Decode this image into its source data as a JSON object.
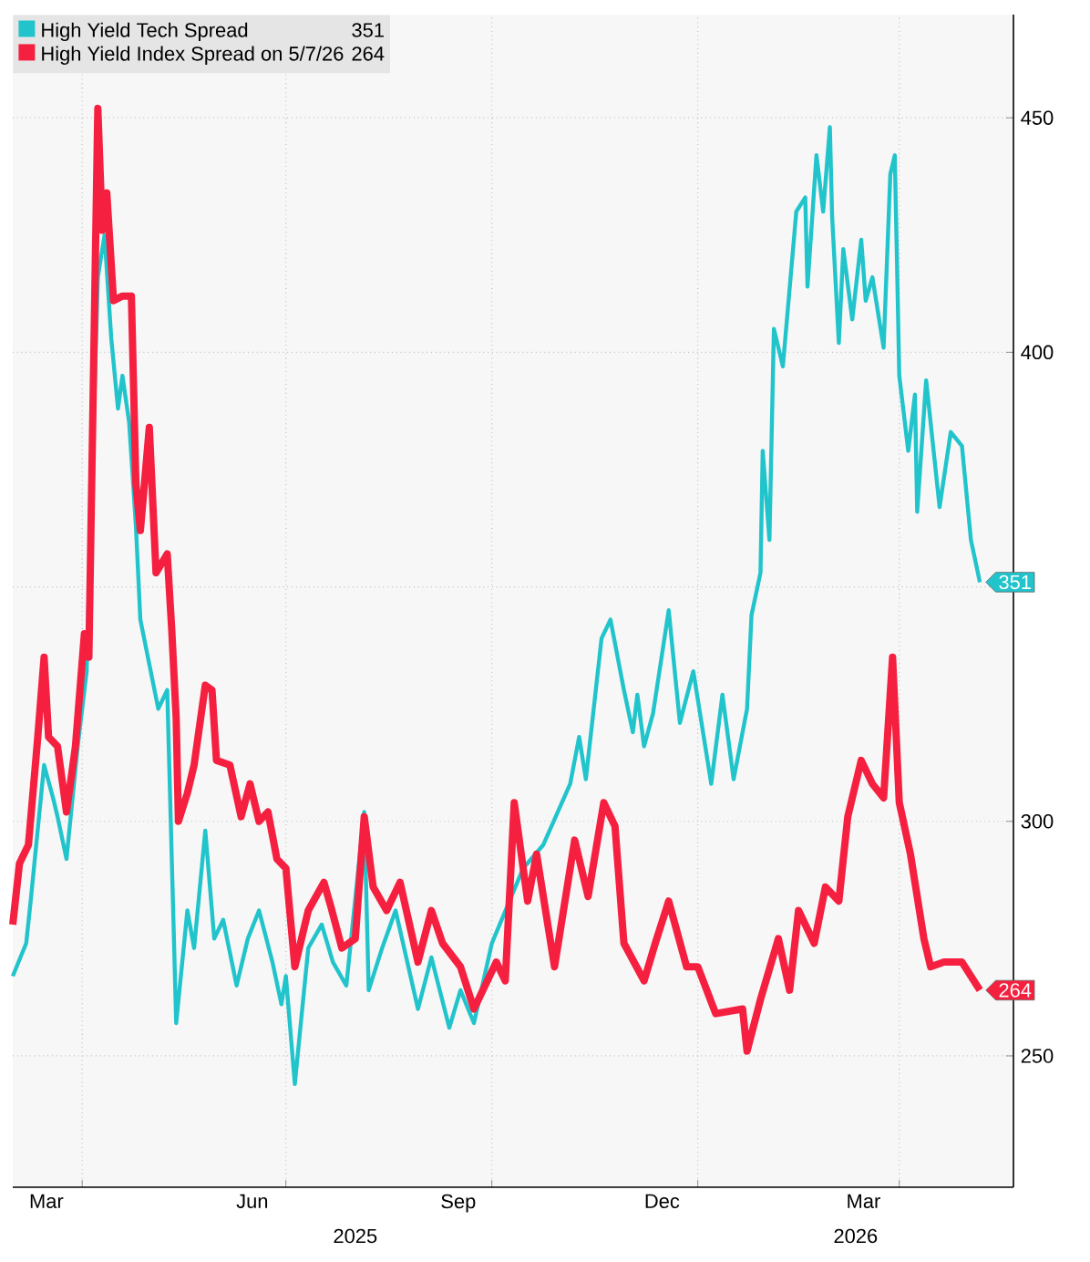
{
  "chart_data": {
    "type": "line",
    "xlim": [
      "2025-03-01",
      "2026-05-22"
    ],
    "ylim": [
      222,
      472
    ],
    "xticks": [
      {
        "value": "2025-04-01",
        "label": null
      },
      {
        "value": "2025-07-01",
        "label": null
      },
      {
        "value": "2025-10-01",
        "label": null
      },
      {
        "value": "2026-01-01",
        "label": null
      },
      {
        "value": "2026-04-01",
        "label": null
      },
      {
        "value": "2025-03-16",
        "label": "Mar"
      },
      {
        "value": "2025-06-16",
        "label": "Jun"
      },
      {
        "value": "2025-09-16",
        "label": "Sep"
      },
      {
        "value": "2025-12-16",
        "label": "Dec"
      },
      {
        "value": "2026-03-16",
        "label": "Mar"
      }
    ],
    "yticks": [
      250,
      300,
      {
        "value": 350,
        "label": null
      },
      400,
      450
    ],
    "grid": true,
    "legend": "top left",
    "annotations": [
      "2025",
      "2026"
    ],
    "series": [
      {
        "name": "High Yield Tech Spread",
        "color": "#22c4cc",
        "x": [
          "2025-03-01",
          "2025-03-07",
          "2025-03-09",
          "2025-03-15",
          "2025-03-19",
          "2025-03-21",
          "2025-03-25",
          "2025-03-30",
          "2025-04-03",
          "2025-04-08",
          "2025-04-11",
          "2025-04-14",
          "2025-04-17",
          "2025-04-19",
          "2025-04-22",
          "2025-04-25",
          "2025-04-27",
          "2025-05-05",
          "2025-05-09",
          "2025-05-13",
          "2025-05-18",
          "2025-05-21",
          "2025-05-26",
          "2025-05-30",
          "2025-06-03",
          "2025-06-09",
          "2025-06-14",
          "2025-06-19",
          "2025-06-25",
          "2025-06-29",
          "2025-07-01",
          "2025-07-05",
          "2025-07-11",
          "2025-07-17",
          "2025-07-22",
          "2025-07-28",
          "2025-08-05",
          "2025-08-07",
          "2025-08-13",
          "2025-08-19",
          "2025-08-29",
          "2025-09-04",
          "2025-09-12",
          "2025-09-17",
          "2025-09-23",
          "2025-10-01",
          "2025-10-15",
          "2025-10-24",
          "2025-11-05",
          "2025-11-09",
          "2025-11-12",
          "2025-11-19",
          "2025-11-23",
          "2025-11-29",
          "2025-12-03",
          "2025-12-05",
          "2025-12-08",
          "2025-12-12",
          "2025-12-19",
          "2025-12-24",
          "2025-12-30",
          "2026-01-07",
          "2026-01-12",
          "2026-01-17",
          "2026-01-23",
          "2026-01-25",
          "2026-01-29",
          "2026-01-30",
          "2026-02-02",
          "2026-02-04",
          "2026-02-08",
          "2026-02-14",
          "2026-02-18",
          "2026-02-19",
          "2026-02-23",
          "2026-02-26",
          "2026-03-01",
          "2026-03-02",
          "2026-03-05",
          "2026-03-07",
          "2026-03-11",
          "2026-03-15",
          "2026-03-17",
          "2026-03-20",
          "2026-03-25",
          "2026-03-28",
          "2026-03-30",
          "2026-04-01",
          "2026-04-05",
          "2026-04-08",
          "2026-04-09",
          "2026-04-13",
          "2026-04-19",
          "2026-04-24",
          "2026-04-29",
          "2026-05-03",
          "2026-05-07"
        ],
        "values": [
          267,
          274,
          283,
          312,
          305,
          301,
          292,
          316,
          332,
          416,
          425,
          403,
          388,
          395,
          385,
          363,
          343,
          324,
          328,
          257,
          281,
          273,
          298,
          275,
          279,
          265,
          275,
          281,
          270,
          261,
          267,
          244,
          273,
          278,
          270,
          265,
          302,
          264,
          273,
          281,
          260,
          271,
          256,
          264,
          257,
          274,
          290,
          295,
          308,
          318,
          309,
          339,
          343,
          328,
          319,
          327,
          316,
          323,
          345,
          321,
          332,
          308,
          327,
          309,
          324,
          344,
          353,
          379,
          360,
          405,
          397,
          430,
          433,
          414,
          442,
          430,
          448,
          429,
          402,
          422,
          407,
          424,
          411,
          416,
          401,
          438,
          442,
          395,
          379,
          391,
          366,
          394,
          367,
          383,
          380,
          360,
          351
        ],
        "value_labels": [
          null,
          null,
          null,
          null,
          null,
          null,
          null,
          null,
          null,
          null,
          null,
          null,
          null,
          null,
          null,
          null,
          null,
          null,
          null,
          null,
          null,
          null,
          null,
          null,
          null,
          null,
          null,
          null,
          null,
          null,
          null,
          null,
          null,
          null,
          null,
          null,
          null,
          null,
          null,
          null,
          null,
          null,
          null,
          null,
          null,
          null,
          null,
          null,
          null,
          null,
          null,
          null,
          null,
          null,
          null,
          null,
          null,
          null,
          null,
          null,
          null,
          null,
          null,
          null,
          null,
          null,
          null,
          null,
          null,
          null,
          null,
          null,
          null,
          null,
          null,
          null,
          null,
          null,
          null,
          null,
          null,
          null,
          null,
          null,
          null,
          null,
          null,
          null,
          null,
          null,
          null,
          null,
          null,
          null,
          null,
          null,
          "351"
        ]
      },
      {
        "name": "High Yield Index Spread on 5/7/26",
        "color": "#f5203f",
        "x": [
          "2025-03-01",
          "2025-03-04",
          "2025-03-08",
          "2025-03-12",
          "2025-03-15",
          "2025-03-17",
          "2025-03-21",
          "2025-03-25",
          "2025-03-29",
          "2025-04-02",
          "2025-04-04",
          "2025-04-08",
          "2025-04-10",
          "2025-04-12",
          "2025-04-15",
          "2025-04-19",
          "2025-04-23",
          "2025-04-25",
          "2025-04-27",
          "2025-05-01",
          "2025-05-04",
          "2025-05-09",
          "2025-05-11",
          "2025-05-13",
          "2025-05-14",
          "2025-05-18",
          "2025-05-21",
          "2025-05-26",
          "2025-05-29",
          "2025-05-31",
          "2025-06-06",
          "2025-06-11",
          "2025-06-15",
          "2025-06-19",
          "2025-06-23",
          "2025-06-27",
          "2025-07-01",
          "2025-07-05",
          "2025-07-11",
          "2025-07-18",
          "2025-07-21",
          "2025-07-26",
          "2025-08-01",
          "2025-08-05",
          "2025-08-09",
          "2025-08-15",
          "2025-08-21",
          "2025-08-29",
          "2025-09-04",
          "2025-09-09",
          "2025-09-17",
          "2025-09-23",
          "2025-09-28",
          "2025-10-03",
          "2025-10-07",
          "2025-10-11",
          "2025-10-17",
          "2025-10-21",
          "2025-10-29",
          "2025-11-07",
          "2025-11-13",
          "2025-11-20",
          "2025-11-25",
          "2025-11-29",
          "2025-12-08",
          "2025-12-13",
          "2025-12-19",
          "2025-12-27",
          "2026-01-01",
          "2026-01-09",
          "2026-01-21",
          "2026-01-23",
          "2026-01-29",
          "2026-02-06",
          "2026-02-11",
          "2026-02-15",
          "2026-02-22",
          "2026-02-27",
          "2026-03-05",
          "2026-03-09",
          "2026-03-15",
          "2026-03-20",
          "2026-03-25",
          "2026-03-29",
          "2026-04-01",
          "2026-04-06",
          "2026-04-12",
          "2026-04-15",
          "2026-04-21",
          "2026-04-29",
          "2026-05-07"
        ],
        "values": [
          278,
          291,
          295,
          317,
          335,
          318,
          316,
          302,
          316,
          340,
          335,
          452,
          426,
          434,
          411,
          412,
          412,
          372,
          362,
          384,
          353,
          357,
          341,
          322,
          300,
          306,
          312,
          329,
          328,
          313,
          312,
          301,
          308,
          300,
          302,
          292,
          290,
          269,
          281,
          287,
          282,
          273,
          275,
          301,
          286,
          281,
          287,
          270,
          281,
          274,
          269,
          260,
          265,
          270,
          266,
          304,
          283,
          293,
          269,
          296,
          284,
          304,
          299,
          274,
          266,
          274,
          283,
          269,
          269,
          259,
          260,
          251,
          262,
          275,
          264,
          281,
          274,
          286,
          283,
          301,
          313,
          308,
          305,
          335,
          304,
          293,
          275,
          269,
          270,
          270,
          264
        ],
        "value_labels": [
          null,
          null,
          null,
          null,
          null,
          null,
          null,
          null,
          null,
          null,
          null,
          null,
          null,
          null,
          null,
          null,
          null,
          null,
          null,
          null,
          null,
          null,
          null,
          null,
          null,
          null,
          null,
          null,
          null,
          null,
          null,
          null,
          null,
          null,
          null,
          null,
          null,
          null,
          null,
          null,
          null,
          null,
          null,
          null,
          null,
          null,
          null,
          null,
          null,
          null,
          null,
          null,
          null,
          null,
          null,
          null,
          null,
          null,
          null,
          null,
          null,
          null,
          null,
          null,
          null,
          null,
          null,
          null,
          null,
          null,
          null,
          null,
          null,
          null,
          null,
          null,
          null,
          null,
          null,
          null,
          null,
          null,
          null,
          null,
          null,
          null,
          null,
          null,
          null,
          null,
          "264"
        ]
      }
    ]
  }
}
